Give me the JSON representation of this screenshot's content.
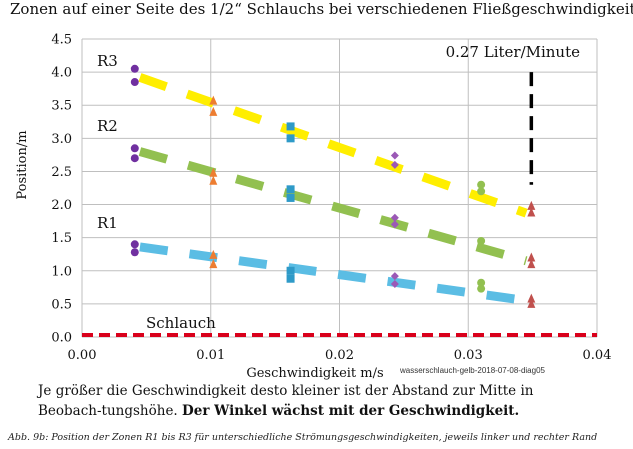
{
  "title": "Zonen auf einer Seite des 1/2“ Schlauchs bei verschiedenen Fließgeschwindigkeiten.",
  "chart_data": {
    "type": "scatter",
    "xlabel": "Geschwindigkeit m/s",
    "ylabel": "Position/m",
    "xlim": [
      0.0,
      0.04
    ],
    "ylim": [
      0.0,
      4.5
    ],
    "x_ticks": [
      "0.00",
      "0.01",
      "0.02",
      "0.03",
      "0.04"
    ],
    "y_ticks": [
      "0.0",
      "0.5",
      "1.0",
      "1.5",
      "2.0",
      "2.5",
      "3.0",
      "3.5",
      "4.0",
      "4.5"
    ],
    "grid": true,
    "annotations": {
      "flow_label": "0.27 Liter/Minute",
      "r3": "R3",
      "r2": "R2",
      "r1": "R1",
      "hose": "Schlauch",
      "source": "wasserschlauch-gelb-2018-07-08-diag05"
    },
    "colors": {
      "circle": "#7030a0",
      "triangle": "#ed7d31",
      "square": "#2e9ac8",
      "diamond": "#9b59b6",
      "circle_green": "#92c050",
      "triangle_red": "#c0504d",
      "R3_trend": "#ffee00",
      "R2_trend": "#92c050",
      "R1_trend": "#5bbde4",
      "hose": "#d9001b",
      "vertical": "#000000"
    },
    "series": [
      {
        "marker": "circle",
        "color": "#7030a0",
        "x": [
          0.0041,
          0.0041,
          0.0041,
          0.0041,
          0.0041,
          0.0041
        ],
        "y": [
          4.05,
          3.85,
          2.85,
          2.7,
          1.4,
          1.28
        ]
      },
      {
        "marker": "triangle",
        "color": "#ed7d31",
        "x": [
          0.0102,
          0.0102,
          0.0102,
          0.0102,
          0.0102,
          0.0102
        ],
        "y": [
          3.57,
          3.4,
          2.48,
          2.36,
          1.24,
          1.1
        ]
      },
      {
        "marker": "square",
        "color": "#2e9ac8",
        "x": [
          0.0162,
          0.0162,
          0.0162,
          0.0162,
          0.0162,
          0.0162
        ],
        "y": [
          3.18,
          3.0,
          2.23,
          2.1,
          1.0,
          0.88
        ]
      },
      {
        "marker": "diamond",
        "color": "#9b59b6",
        "x": [
          0.0243,
          0.0243,
          0.0243,
          0.0243,
          0.0243,
          0.0243
        ],
        "y": [
          2.74,
          2.6,
          1.8,
          1.7,
          0.92,
          0.8
        ]
      },
      {
        "marker": "circle",
        "color": "#92c050",
        "x": [
          0.031,
          0.031,
          0.031,
          0.031,
          0.031,
          0.031
        ],
        "y": [
          2.3,
          2.2,
          1.45,
          1.35,
          0.82,
          0.73
        ]
      },
      {
        "marker": "triangle",
        "color": "#c0504d",
        "x": [
          0.0349,
          0.0349,
          0.0349,
          0.0349,
          0.0349,
          0.0349
        ],
        "y": [
          1.98,
          1.88,
          1.2,
          1.1,
          0.58,
          0.5
        ]
      }
    ],
    "trendlines": [
      {
        "name": "R3",
        "color": "#ffee00",
        "x": [
          0.0045,
          0.0345
        ],
        "y": [
          3.92,
          1.87
        ]
      },
      {
        "name": "R2",
        "color": "#92c050",
        "x": [
          0.0045,
          0.0345
        ],
        "y": [
          2.8,
          1.15
        ]
      },
      {
        "name": "R1",
        "color": "#5bbde4",
        "x": [
          0.0045,
          0.0345
        ],
        "y": [
          1.36,
          0.55
        ]
      }
    ],
    "vertical_line": {
      "x": 0.0349,
      "y": [
        2.3,
        4.0
      ],
      "color": "#000000"
    },
    "hose_line": {
      "y": 0.03,
      "color": "#d9001b"
    }
  },
  "body_text": {
    "part1": "Je größer die Geschwindigkeit desto kleiner ist der Abstand zur Mitte in Beobach-tungshöhe.",
    "part2": "Der Winkel wächst mit der Geschwindigkeit."
  },
  "caption": "Abb. 9b: Position der Zonen R1 bis R3 für unterschiedliche Strömungsgeschwindigkeiten, jeweils linker und rechter Rand"
}
